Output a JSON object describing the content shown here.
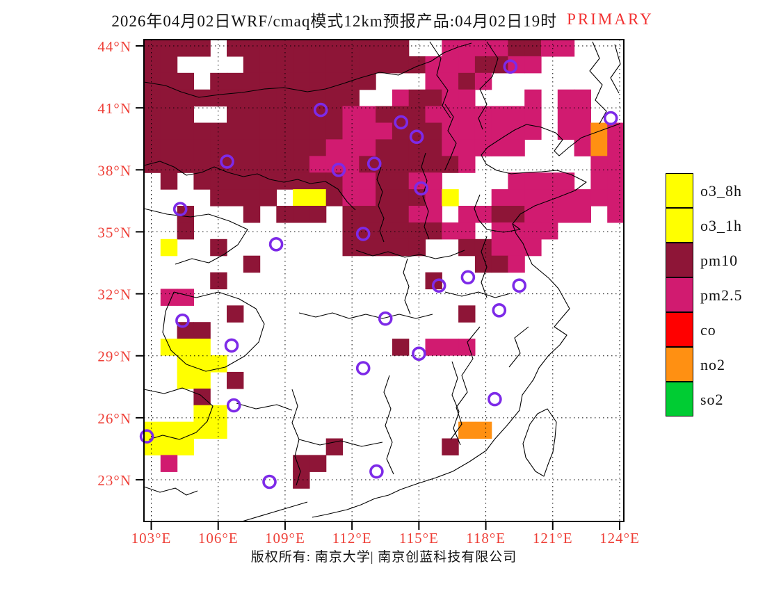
{
  "header": {
    "title": "2026年04月02日WRF/cmaq模式12km预报产品:04月02日19时",
    "highlight": "PRIMARY"
  },
  "footer": {
    "copyright": "版权所有: 南京大学| 南京创蓝科技有限公司"
  },
  "colors": {
    "title": "#141414",
    "highlight_red": "#f23131",
    "axis_label_red": "#ee4038",
    "marker_purple": "#7d2ae8",
    "frame_black": "#000000",
    "boundary_black": "#000000"
  },
  "legend": {
    "items": [
      {
        "label": "o3_8h",
        "color": "#ffff00"
      },
      {
        "label": "o3_1h",
        "color": "#ffff00"
      },
      {
        "label": "pm10",
        "color": "#8e1537"
      },
      {
        "label": "pm2.5",
        "color": "#d11b70"
      },
      {
        "label": "co",
        "color": "#ff0000"
      },
      {
        "label": "no2",
        "color": "#ff9012"
      },
      {
        "label": "so2",
        "color": "#00cc33"
      }
    ]
  },
  "chart_data": {
    "type": "heatmap",
    "title": "2026年04月02日WRF/cmaq模式12km预报产品:04月02日19时 PRIMARY",
    "description": "Primary pollutant forecast map over eastern China; colored 12km raster cells mark the dominant pollutant, open purple circles mark provincial capital cities.",
    "x_axis": {
      "tick_degs": [
        103,
        106,
        109,
        112,
        115,
        118,
        121,
        124
      ],
      "tick_labels": [
        "103°E",
        "106°E",
        "109°E",
        "112°E",
        "115°E",
        "118°E",
        "121°E",
        "124°E"
      ]
    },
    "y_axis": {
      "tick_degs": [
        44,
        41,
        38,
        35,
        32,
        29,
        26,
        23
      ],
      "tick_labels": [
        "44°N",
        "41°N",
        "38°N",
        "35°N",
        "32°N",
        "29°N",
        "26°N",
        "23°N"
      ]
    },
    "lon_range": [
      102.7,
      124.2
    ],
    "lat_range": [
      21.0,
      44.3
    ],
    "grid": true,
    "legend_position": "right",
    "palette": {
      ".": "none",
      "m": "pm10",
      "p": "pm2.5",
      "y": "o3",
      "o": "no2"
    },
    "palette_colors": {
      "m": "#8e1537",
      "p": "#d11b70",
      "y": "#ffff00",
      "o": "#ff9012"
    },
    "grid_cols": 29,
    "grid_rows_count": 29,
    "grid_rows": [
      "mmmm.mmmmmmmmmmm..ppppmmpp...",
      "mm....mmmmmmmmmmmpppmmpp.....",
      "mmm.mmmmmmmmmm...ppmp........",
      "mmmmmmmmmmmmm..pmmpp...p.pp..",
      "mmm..mmmmmmmppmmmppppppp.pp..",
      "mmmmmmmmmmmmpppmmmpppppp.ppop",
      "mmmmmmmmmmmpppmmmmppppp...pop",
      "mmmmmmmmmmpppmmmmmmp.......pp",
      ".m.mmmmmmmmmppmmpp....pppp.pp",
      "....mmmm.yymppmmmpy..pppppppp",
      "..m...m.mmm.mmmmpp.ppmmpppp.p",
      "..m.........mmmmmmpp.pppp....",
      ".y..m.......mmmmm..mmppp.....",
      "......m.............mmp......",
      "....m............m...........",
      ".pp..........................",
      ".....m.............m.........",
      "..mm.........................",
      ".yyy...........m.ppp.........",
      "..yyy........................",
      "..yy.m.......................",
      "...m.........................",
      "...yy........................",
      "yyyyy..............oo........",
      "yyy........m......m..........",
      ".p.......mm..................",
      ".........m...................",
      ".............................",
      "............................."
    ],
    "city_markers_lon_lat": [
      [
        110.6,
        40.9
      ],
      [
        106.4,
        38.4
      ],
      [
        111.4,
        38.0
      ],
      [
        113.0,
        38.3
      ],
      [
        104.3,
        36.1
      ],
      [
        112.5,
        34.9
      ],
      [
        108.6,
        34.4
      ],
      [
        119.1,
        43.0
      ],
      [
        114.2,
        40.3
      ],
      [
        114.9,
        39.6
      ],
      [
        115.1,
        37.1
      ],
      [
        123.6,
        40.5
      ],
      [
        104.4,
        30.7
      ],
      [
        106.6,
        29.5
      ],
      [
        112.5,
        28.4
      ],
      [
        106.7,
        26.6
      ],
      [
        102.8,
        25.1
      ],
      [
        108.3,
        22.9
      ],
      [
        113.1,
        23.4
      ],
      [
        117.2,
        32.8
      ],
      [
        115.9,
        32.4
      ],
      [
        119.5,
        32.4
      ],
      [
        118.6,
        31.2
      ],
      [
        113.5,
        30.8
      ],
      [
        115.0,
        29.1
      ],
      [
        118.4,
        26.9
      ]
    ]
  }
}
